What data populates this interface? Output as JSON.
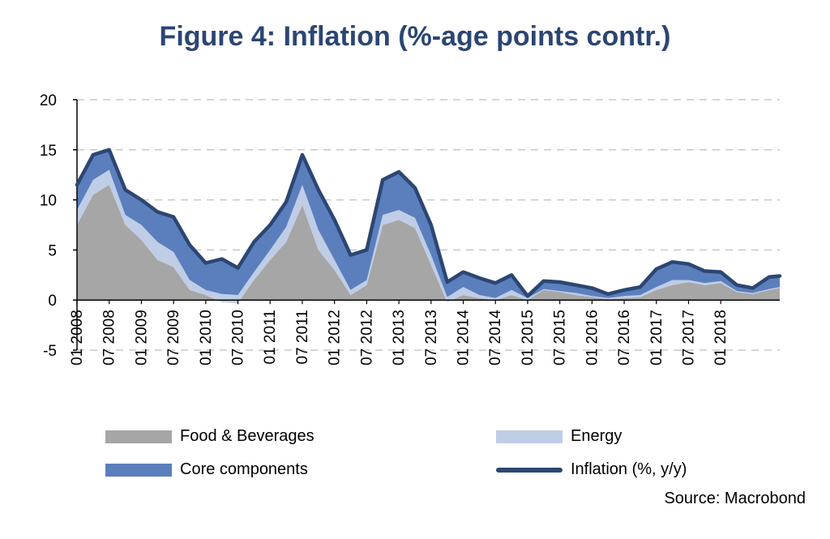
{
  "chart_data": {
    "type": "area",
    "title": "Figure 4: Inflation (%-age points contr.)",
    "ylim": [
      -5,
      20
    ],
    "yticks": [
      20,
      15,
      10,
      5,
      0,
      -5
    ],
    "grid": true,
    "legend_position": "bottom",
    "x_tick_labels": [
      "01 2008",
      "07 2008",
      "01 2009",
      "07 2009",
      "01 2010",
      "07 2010",
      "01 2011",
      "07 2011",
      "01 2012",
      "07 2012",
      "01 2013",
      "07 2013",
      "01 2014",
      "07 2014",
      "01 2015",
      "07 2015",
      "01 2016",
      "07 2016",
      "01 2017",
      "07 2017",
      "01 2018"
    ],
    "x": [
      "01 2008",
      "04 2008",
      "07 2008",
      "10 2008",
      "01 2009",
      "04 2009",
      "07 2009",
      "10 2009",
      "01 2010",
      "04 2010",
      "07 2010",
      "10 2010",
      "01 2011",
      "04 2011",
      "07 2011",
      "10 2011",
      "01 2012",
      "04 2012",
      "07 2012",
      "10 2012",
      "01 2013",
      "04 2013",
      "07 2013",
      "10 2013",
      "01 2014",
      "04 2014",
      "07 2014",
      "10 2014",
      "01 2015",
      "04 2015",
      "07 2015",
      "10 2015",
      "01 2016",
      "04 2016",
      "07 2016",
      "10 2016",
      "01 2017",
      "04 2017",
      "07 2017",
      "10 2017",
      "01 2018",
      "04 2018",
      "07 2018",
      "10 2018",
      "12 2018"
    ],
    "series": [
      {
        "name": "Food & Beverages",
        "color": "#a6a6a6",
        "values": [
          7.5,
          10.5,
          11.5,
          7.5,
          6.0,
          4.0,
          3.3,
          1.0,
          0.5,
          -0.2,
          -0.3,
          2.0,
          4.0,
          5.8,
          9.5,
          5.0,
          3.0,
          0.5,
          1.5,
          7.5,
          8.0,
          7.2,
          3.5,
          -0.2,
          0.5,
          0.2,
          0.0,
          0.5,
          0.0,
          1.0,
          0.8,
          0.5,
          0.3,
          0.1,
          0.2,
          0.3,
          1.0,
          1.5,
          1.8,
          1.5,
          1.7,
          0.8,
          0.6,
          1.0,
          1.2
        ]
      },
      {
        "name": "Energy",
        "color": "#bfcde6",
        "values": [
          1.5,
          1.5,
          1.5,
          1.0,
          1.5,
          1.8,
          1.5,
          1.0,
          0.5,
          0.8,
          0.8,
          0.8,
          1.0,
          1.5,
          2.0,
          2.0,
          1.0,
          0.5,
          0.5,
          1.0,
          1.0,
          1.0,
          1.0,
          0.5,
          0.8,
          0.3,
          0.2,
          0.5,
          0.2,
          0.1,
          0.1,
          0.2,
          0.1,
          0.1,
          0.2,
          0.2,
          0.3,
          0.5,
          0.2,
          0.2,
          0.2,
          0.1,
          0.1,
          0.1,
          0.1
        ]
      },
      {
        "name": "Core components",
        "color": "#5b7fbd",
        "values": [
          2.5,
          2.5,
          2.0,
          2.5,
          2.5,
          3.0,
          3.5,
          3.5,
          2.7,
          3.5,
          2.7,
          3.0,
          2.5,
          2.5,
          3.0,
          4.0,
          4.0,
          3.5,
          3.0,
          3.5,
          3.8,
          3.0,
          3.0,
          1.5,
          1.5,
          1.7,
          1.5,
          1.5,
          0.2,
          0.8,
          0.9,
          0.8,
          0.8,
          0.4,
          0.6,
          0.8,
          1.8,
          1.8,
          1.6,
          1.2,
          0.9,
          0.6,
          0.5,
          1.2,
          1.1
        ]
      },
      {
        "name": "Inflation (%, y/y)",
        "color": "#2c4673",
        "values": [
          11.5,
          14.5,
          15.0,
          11.0,
          10.0,
          8.8,
          8.3,
          5.5,
          3.7,
          4.1,
          3.2,
          5.8,
          7.5,
          9.8,
          14.5,
          11.0,
          8.0,
          4.5,
          5.0,
          12.0,
          12.8,
          11.2,
          7.5,
          1.8,
          2.8,
          2.2,
          1.7,
          2.5,
          0.4,
          1.9,
          1.8,
          1.5,
          1.2,
          0.6,
          1.0,
          1.3,
          3.1,
          3.8,
          3.6,
          2.9,
          2.8,
          1.5,
          1.2,
          2.3,
          2.4
        ]
      }
    ]
  },
  "legend": {
    "food": "Food & Beverages",
    "energy": "Energy",
    "core": "Core components",
    "inflation": "Inflation (%, y/y)"
  },
  "source": "Source: Macrobond"
}
